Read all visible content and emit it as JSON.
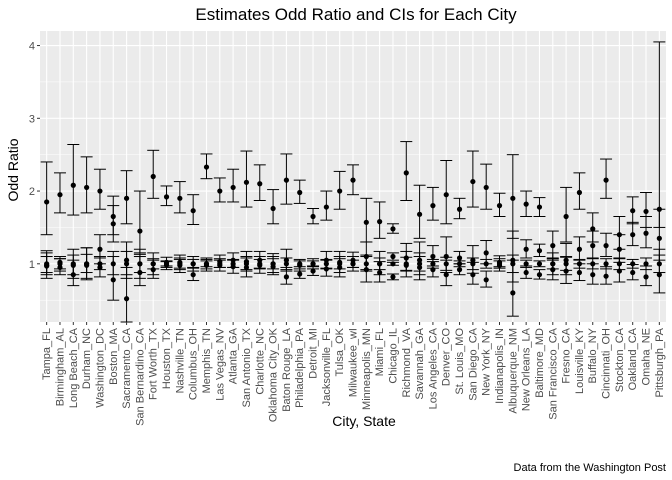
{
  "chart_data": {
    "type": "scatter",
    "title": "Estimates Odd Ratio and CIs for Each City",
    "xlabel": "City, State",
    "ylabel": "Odd Ratio",
    "caption": "Data from the Washington Post",
    "ylim": [
      0.2,
      4.2
    ],
    "yticks": [
      "1",
      "2",
      "3",
      "4"
    ],
    "grid": true,
    "categories": [
      "Tampa_FL",
      "Birmingham_AL",
      "Long Beach_CA",
      "Durham_NC",
      "Washington_DC",
      "Boston_MA",
      "Sacramento_CA",
      "San Bernardino_CA",
      "Fort Worth_TX",
      "Houston_TX",
      "Nashville_TN",
      "Columbus_OH",
      "Memphis_TN",
      "Las Vegas_NV",
      "Atlanta_GA",
      "San Antonio_TX",
      "Charlotte_NC",
      "Oklahoma City_OK",
      "Baton Rouge_LA",
      "Philadelphia_PA",
      "Detroit_MI",
      "Jacksonville_FL",
      "Tulsa_OK",
      "Milwaukee_wI",
      "Minneapolis_MN",
      "Miami_FL",
      "Chicago_IL",
      "Richmond_VA",
      "Savannah_GA",
      "Los Angeles_CA",
      "Denver_CO",
      "St. Louis_MO",
      "San Diego_CA",
      "New York_NY",
      "Indianapolis_IN",
      "Albuquerque_NM",
      "New Orleans_LA",
      "Baltimore_MD",
      "San Francisco_CA",
      "Fresno_CA",
      "Louisville_KY",
      "Buffalo_NY",
      "Cincinnati_OH",
      "Stockton_CA",
      "Oakland_CA",
      "Omaha_NE",
      "Pittsburgh_PA"
    ],
    "series": [
      {
        "points": [
          {
            "est": 1.85,
            "lo": 1.4,
            "hi": 2.4
          },
          {
            "est": 1.95,
            "lo": 1.7,
            "hi": 2.25
          },
          {
            "est": 2.08,
            "lo": 1.67,
            "hi": 2.64
          },
          {
            "est": 2.05,
            "lo": 1.7,
            "hi": 2.47
          },
          {
            "est": 2.0,
            "lo": 1.75,
            "hi": 2.3
          },
          {
            "est": 1.65,
            "lo": 1.4,
            "hi": 1.93
          },
          {
            "est": 1.9,
            "lo": 1.55,
            "hi": 2.28
          },
          {
            "est": 1.45,
            "lo": 1.15,
            "hi": 2.0
          },
          {
            "est": 2.2,
            "lo": 1.9,
            "hi": 2.56
          },
          {
            "est": 1.92,
            "lo": 1.8,
            "hi": 2.07
          },
          {
            "est": 1.9,
            "lo": 1.7,
            "hi": 2.13
          },
          {
            "est": 1.73,
            "lo": 1.54,
            "hi": 1.95
          },
          {
            "est": 2.33,
            "lo": 2.17,
            "hi": 2.51
          },
          {
            "est": 2.0,
            "lo": 1.85,
            "hi": 2.18
          },
          {
            "est": 2.05,
            "lo": 1.85,
            "hi": 2.3
          },
          {
            "est": 2.12,
            "lo": 1.78,
            "hi": 2.55
          },
          {
            "est": 2.1,
            "lo": 1.87,
            "hi": 2.36
          },
          {
            "est": 1.76,
            "lo": 1.55,
            "hi": 2.02
          },
          {
            "est": 2.15,
            "lo": 1.82,
            "hi": 2.51
          },
          {
            "est": 1.98,
            "lo": 1.83,
            "hi": 2.15
          },
          {
            "est": 1.65,
            "lo": 1.55,
            "hi": 1.76
          },
          {
            "est": 1.78,
            "lo": 1.6,
            "hi": 2.0
          },
          {
            "est": 2.0,
            "lo": 1.75,
            "hi": 2.27
          },
          {
            "est": 2.15,
            "lo": 1.95,
            "hi": 2.36
          },
          {
            "est": 1.57,
            "lo": 1.3,
            "hi": 1.9
          },
          {
            "est": 1.58,
            "lo": 1.35,
            "hi": 1.85
          },
          {
            "est": 1.48,
            "lo": 1.42,
            "hi": 1.55
          },
          {
            "est": 2.25,
            "lo": 1.87,
            "hi": 2.68
          },
          {
            "est": 1.68,
            "lo": 1.35,
            "hi": 2.08
          },
          {
            "est": 1.8,
            "lo": 1.6,
            "hi": 2.05
          },
          {
            "est": 1.95,
            "lo": 1.55,
            "hi": 2.42
          },
          {
            "est": 1.75,
            "lo": 1.62,
            "hi": 1.9
          },
          {
            "est": 2.13,
            "lo": 1.78,
            "hi": 2.55
          },
          {
            "est": 2.05,
            "lo": 1.75,
            "hi": 2.37
          },
          {
            "est": 1.8,
            "lo": 1.65,
            "hi": 1.97
          },
          {
            "est": 1.9,
            "lo": 1.35,
            "hi": 2.5
          },
          {
            "est": 1.82,
            "lo": 1.65,
            "hi": 2.0
          },
          {
            "est": 1.78,
            "lo": 1.65,
            "hi": 1.91
          },
          {
            "est": 1.25,
            "lo": 1.05,
            "hi": 1.45
          },
          {
            "est": 1.65,
            "lo": 1.3,
            "hi": 2.05
          },
          {
            "est": 1.98,
            "lo": 1.75,
            "hi": 2.25
          },
          {
            "est": 1.48,
            "lo": 1.3,
            "hi": 1.7
          },
          {
            "est": 2.15,
            "lo": 1.9,
            "hi": 2.44
          },
          {
            "est": 1.4,
            "lo": 1.2,
            "hi": 1.65
          },
          {
            "est": 1.73,
            "lo": 1.55,
            "hi": 1.92
          },
          {
            "est": 1.72,
            "lo": 1.5,
            "hi": 1.98
          },
          {
            "est": 1.75,
            "lo": 1.5,
            "hi": 4.05
          }
        ]
      },
      {
        "points": [
          {
            "est": 1.0,
            "lo": 0.85,
            "hi": 1.15
          },
          {
            "est": 1.02,
            "lo": 0.9,
            "hi": 1.1
          },
          {
            "est": 1.0,
            "lo": 0.8,
            "hi": 1.2
          },
          {
            "est": 1.0,
            "lo": 0.8,
            "hi": 1.22
          },
          {
            "est": 1.2,
            "lo": 1.0,
            "hi": 1.4
          },
          {
            "est": 1.55,
            "lo": 1.3,
            "hi": 1.8
          },
          {
            "est": 1.05,
            "lo": 0.8,
            "hi": 1.3
          },
          {
            "est": 1.0,
            "lo": 0.8,
            "hi": 1.2
          },
          {
            "est": 1.0,
            "lo": 0.85,
            "hi": 1.15
          },
          {
            "est": 1.02,
            "lo": 0.95,
            "hi": 1.09
          },
          {
            "est": 1.02,
            "lo": 0.92,
            "hi": 1.12
          },
          {
            "est": 1.0,
            "lo": 0.9,
            "hi": 1.1
          },
          {
            "est": 1.0,
            "lo": 0.93,
            "hi": 1.08
          },
          {
            "est": 1.03,
            "lo": 0.95,
            "hi": 1.12
          },
          {
            "est": 1.05,
            "lo": 0.95,
            "hi": 1.15
          },
          {
            "est": 1.03,
            "lo": 0.9,
            "hi": 1.17
          },
          {
            "est": 1.05,
            "lo": 0.93,
            "hi": 1.17
          },
          {
            "est": 1.0,
            "lo": 0.88,
            "hi": 1.14
          },
          {
            "est": 1.05,
            "lo": 0.9,
            "hi": 1.2
          },
          {
            "est": 0.98,
            "lo": 0.9,
            "hi": 1.06
          },
          {
            "est": 1.0,
            "lo": 0.93,
            "hi": 1.07
          },
          {
            "est": 1.05,
            "lo": 0.93,
            "hi": 1.17
          },
          {
            "est": 1.02,
            "lo": 0.88,
            "hi": 1.17
          },
          {
            "est": 1.05,
            "lo": 0.95,
            "hi": 1.16
          },
          {
            "est": 1.1,
            "lo": 0.92,
            "hi": 1.3
          },
          {
            "est": 1.0,
            "lo": 0.85,
            "hi": 1.17
          },
          {
            "est": 1.1,
            "lo": 1.05,
            "hi": 1.15
          },
          {
            "est": 1.08,
            "lo": 0.9,
            "hi": 1.28
          },
          {
            "est": 1.05,
            "lo": 0.85,
            "hi": 1.3
          },
          {
            "est": 1.1,
            "lo": 0.97,
            "hi": 1.25
          },
          {
            "est": 1.1,
            "lo": 0.88,
            "hi": 1.37
          },
          {
            "est": 1.08,
            "lo": 1.0,
            "hi": 1.17
          },
          {
            "est": 1.05,
            "lo": 0.87,
            "hi": 1.25
          },
          {
            "est": 1.15,
            "lo": 1.0,
            "hi": 1.32
          },
          {
            "est": 1.02,
            "lo": 0.94,
            "hi": 1.11
          },
          {
            "est": 1.05,
            "lo": 0.75,
            "hi": 1.45
          },
          {
            "est": 1.2,
            "lo": 1.08,
            "hi": 1.33
          },
          {
            "est": 1.18,
            "lo": 1.1,
            "hi": 1.27
          },
          {
            "est": 1.0,
            "lo": 0.85,
            "hi": 1.15
          },
          {
            "est": 1.05,
            "lo": 0.85,
            "hi": 1.28
          },
          {
            "est": 1.2,
            "lo": 1.05,
            "hi": 1.37
          },
          {
            "est": 1.25,
            "lo": 1.08,
            "hi": 1.45
          },
          {
            "est": 1.25,
            "lo": 1.1,
            "hi": 1.42
          },
          {
            "est": 1.2,
            "lo": 1.02,
            "hi": 1.4
          },
          {
            "est": 1.4,
            "lo": 1.25,
            "hi": 1.57
          },
          {
            "est": 1.42,
            "lo": 1.22,
            "hi": 1.65
          },
          {
            "est": 1.35,
            "lo": 1.05,
            "hi": 1.75
          }
        ]
      },
      {
        "points": [
          {
            "est": 0.97,
            "lo": 0.8,
            "hi": 1.18
          },
          {
            "est": 0.95,
            "lo": 0.85,
            "hi": 1.07
          },
          {
            "est": 0.85,
            "lo": 0.7,
            "hi": 1.05
          },
          {
            "est": 0.98,
            "lo": 0.78,
            "hi": 1.22
          },
          {
            "est": 0.95,
            "lo": 0.82,
            "hi": 1.1
          },
          {
            "est": 0.78,
            "lo": 0.5,
            "hi": 1.1
          },
          {
            "est": 0.52,
            "lo": 0.2,
            "hi": 0.95
          },
          {
            "est": 0.88,
            "lo": 0.7,
            "hi": 1.1
          },
          {
            "est": 0.92,
            "lo": 0.8,
            "hi": 1.05
          },
          {
            "est": 0.98,
            "lo": 0.92,
            "hi": 1.04
          },
          {
            "est": 0.98,
            "lo": 0.88,
            "hi": 1.08
          },
          {
            "est": 0.85,
            "lo": 0.77,
            "hi": 0.95
          },
          {
            "est": 0.98,
            "lo": 0.9,
            "hi": 1.06
          },
          {
            "est": 0.98,
            "lo": 0.9,
            "hi": 1.07
          },
          {
            "est": 0.96,
            "lo": 0.87,
            "hi": 1.06
          },
          {
            "est": 0.95,
            "lo": 0.82,
            "hi": 1.1
          },
          {
            "est": 0.98,
            "lo": 0.87,
            "hi": 1.1
          },
          {
            "est": 0.96,
            "lo": 0.85,
            "hi": 1.1
          },
          {
            "est": 0.82,
            "lo": 0.72,
            "hi": 0.95
          },
          {
            "est": 0.86,
            "lo": 0.8,
            "hi": 0.93
          },
          {
            "est": 0.9,
            "lo": 0.84,
            "hi": 0.97
          },
          {
            "est": 0.93,
            "lo": 0.83,
            "hi": 1.05
          },
          {
            "est": 0.95,
            "lo": 0.82,
            "hi": 1.1
          },
          {
            "est": 1.0,
            "lo": 0.9,
            "hi": 1.1
          },
          {
            "est": 0.92,
            "lo": 0.75,
            "hi": 1.12
          },
          {
            "est": 0.88,
            "lo": 0.75,
            "hi": 1.03
          },
          {
            "est": 0.82,
            "lo": 0.78,
            "hi": 0.86
          },
          {
            "est": 0.98,
            "lo": 0.82,
            "hi": 1.17
          },
          {
            "est": 0.95,
            "lo": 0.78,
            "hi": 1.15
          },
          {
            "est": 0.92,
            "lo": 0.82,
            "hi": 1.03
          },
          {
            "est": 0.85,
            "lo": 0.7,
            "hi": 1.05
          },
          {
            "est": 0.92,
            "lo": 0.85,
            "hi": 1.0
          },
          {
            "est": 0.85,
            "lo": 0.72,
            "hi": 1.02
          },
          {
            "est": 0.78,
            "lo": 0.68,
            "hi": 0.9
          },
          {
            "est": 0.98,
            "lo": 0.9,
            "hi": 1.07
          },
          {
            "est": 0.6,
            "lo": 0.28,
            "hi": 1.05
          },
          {
            "est": 0.88,
            "lo": 0.8,
            "hi": 0.97
          },
          {
            "est": 0.85,
            "lo": 0.79,
            "hi": 0.92
          },
          {
            "est": 0.92,
            "lo": 0.78,
            "hi": 1.08
          },
          {
            "est": 0.9,
            "lo": 0.73,
            "hi": 1.1
          },
          {
            "est": 0.88,
            "lo": 0.77,
            "hi": 1.0
          },
          {
            "est": 0.85,
            "lo": 0.72,
            "hi": 1.0
          },
          {
            "est": 0.83,
            "lo": 0.72,
            "hi": 0.96
          },
          {
            "est": 0.9,
            "lo": 0.75,
            "hi": 1.07
          },
          {
            "est": 0.88,
            "lo": 0.78,
            "hi": 0.99
          },
          {
            "est": 0.82,
            "lo": 0.7,
            "hi": 0.97
          },
          {
            "est": 0.85,
            "lo": 0.6,
            "hi": 1.2
          }
        ]
      },
      {
        "points": [
          {
            "est": 0.98,
            "lo": 0.88,
            "hi": 1.1
          },
          {
            "est": 1.0,
            "lo": 0.93,
            "hi": 1.07
          },
          {
            "est": 0.98,
            "lo": 0.85,
            "hi": 1.12
          },
          {
            "est": 1.0,
            "lo": 0.88,
            "hi": 1.13
          },
          {
            "est": 1.0,
            "lo": 0.92,
            "hi": 1.08
          },
          {
            "est": 1.0,
            "lo": 0.85,
            "hi": 1.17
          },
          {
            "est": 1.0,
            "lo": 0.85,
            "hi": 1.17
          },
          {
            "est": 1.0,
            "lo": 0.88,
            "hi": 1.13
          },
          {
            "est": 1.0,
            "lo": 0.93,
            "hi": 1.07
          },
          {
            "est": 1.0,
            "lo": 0.97,
            "hi": 1.03
          },
          {
            "est": 1.0,
            "lo": 0.94,
            "hi": 1.06
          },
          {
            "est": 1.0,
            "lo": 0.94,
            "hi": 1.06
          },
          {
            "est": 1.0,
            "lo": 0.96,
            "hi": 1.04
          },
          {
            "est": 1.0,
            "lo": 0.95,
            "hi": 1.05
          },
          {
            "est": 1.0,
            "lo": 0.95,
            "hi": 1.05
          },
          {
            "est": 1.0,
            "lo": 0.92,
            "hi": 1.08
          },
          {
            "est": 1.0,
            "lo": 0.94,
            "hi": 1.06
          },
          {
            "est": 1.0,
            "lo": 0.93,
            "hi": 1.07
          },
          {
            "est": 1.0,
            "lo": 0.92,
            "hi": 1.08
          },
          {
            "est": 1.0,
            "lo": 0.96,
            "hi": 1.04
          },
          {
            "est": 1.0,
            "lo": 0.96,
            "hi": 1.04
          },
          {
            "est": 1.0,
            "lo": 0.94,
            "hi": 1.06
          },
          {
            "est": 1.0,
            "lo": 0.93,
            "hi": 1.07
          },
          {
            "est": 1.0,
            "lo": 0.95,
            "hi": 1.05
          },
          {
            "est": 1.0,
            "lo": 0.9,
            "hi": 1.1
          },
          {
            "est": 1.0,
            "lo": 0.92,
            "hi": 1.08
          },
          {
            "est": 1.0,
            "lo": 0.98,
            "hi": 1.02
          },
          {
            "est": 1.0,
            "lo": 0.91,
            "hi": 1.09
          },
          {
            "est": 1.0,
            "lo": 0.9,
            "hi": 1.1
          },
          {
            "est": 1.0,
            "lo": 0.94,
            "hi": 1.06
          },
          {
            "est": 1.0,
            "lo": 0.91,
            "hi": 1.09
          },
          {
            "est": 1.0,
            "lo": 0.96,
            "hi": 1.04
          },
          {
            "est": 1.0,
            "lo": 0.92,
            "hi": 1.08
          },
          {
            "est": 1.0,
            "lo": 0.94,
            "hi": 1.06
          },
          {
            "est": 1.0,
            "lo": 0.96,
            "hi": 1.04
          },
          {
            "est": 1.0,
            "lo": 0.88,
            "hi": 1.12
          },
          {
            "est": 1.0,
            "lo": 0.95,
            "hi": 1.05
          },
          {
            "est": 1.0,
            "lo": 0.96,
            "hi": 1.04
          },
          {
            "est": 1.0,
            "lo": 0.93,
            "hi": 1.07
          },
          {
            "est": 1.0,
            "lo": 0.91,
            "hi": 1.09
          },
          {
            "est": 1.0,
            "lo": 0.94,
            "hi": 1.06
          },
          {
            "est": 1.0,
            "lo": 0.93,
            "hi": 1.07
          },
          {
            "est": 1.0,
            "lo": 0.93,
            "hi": 1.07
          },
          {
            "est": 1.0,
            "lo": 0.92,
            "hi": 1.08
          },
          {
            "est": 1.0,
            "lo": 0.94,
            "hi": 1.06
          },
          {
            "est": 1.0,
            "lo": 0.92,
            "hi": 1.08
          },
          {
            "est": 1.0,
            "lo": 0.88,
            "hi": 1.12
          }
        ]
      }
    ],
    "colors": {
      "panel": "#ebebeb",
      "grid": "#ffffff",
      "mark": "#000000",
      "tick_text": "#4d4d4d"
    }
  }
}
